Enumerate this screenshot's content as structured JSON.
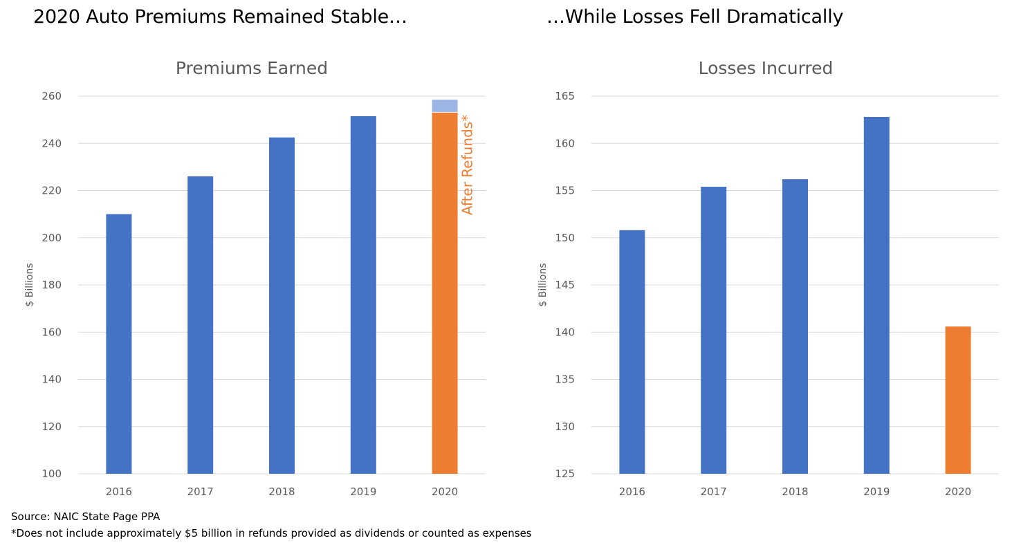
{
  "headlines": {
    "left": "2020 Auto Premiums Remained Stable…",
    "right": "…While Losses Fell Dramatically"
  },
  "footnotes": {
    "source": "Source: NAIC State Page PPA",
    "refund": "*Does not include approximately $5 billion in refunds provided as dividends or counted as expenses"
  },
  "colors": {
    "blue": "#4472C4",
    "orange": "#ED7D31",
    "light_blue": "#9DB5E3",
    "grid": "#D9D9D9",
    "text": "#595959"
  },
  "chart_data": [
    {
      "type": "bar",
      "title": "Premiums Earned",
      "xlabel": "",
      "ylabel": "$ Billions",
      "ylim": [
        100,
        260
      ],
      "yticks": [
        100,
        120,
        140,
        160,
        180,
        200,
        220,
        240,
        260
      ],
      "grid": true,
      "categories": [
        "2016",
        "2017",
        "2018",
        "2019",
        "2020"
      ],
      "values": [
        210,
        226,
        242.5,
        251.5,
        253
      ],
      "bar_colors": [
        "blue",
        "blue",
        "blue",
        "blue",
        "orange"
      ],
      "stacked_extra": {
        "category": "2020",
        "value": 5.5,
        "color": "light_blue"
      },
      "annotation": {
        "text": "After Refunds*",
        "category": "2020",
        "color": "orange"
      }
    },
    {
      "type": "bar",
      "title": "Losses Incurred",
      "xlabel": "",
      "ylabel": "$ Billions",
      "ylim": [
        125,
        165
      ],
      "yticks": [
        125,
        130,
        135,
        140,
        145,
        150,
        155,
        160,
        165
      ],
      "grid": true,
      "categories": [
        "2016",
        "2017",
        "2018",
        "2019",
        "2020"
      ],
      "values": [
        150.8,
        155.4,
        156.2,
        162.8,
        140.6
      ],
      "bar_colors": [
        "blue",
        "blue",
        "blue",
        "blue",
        "orange"
      ]
    }
  ]
}
